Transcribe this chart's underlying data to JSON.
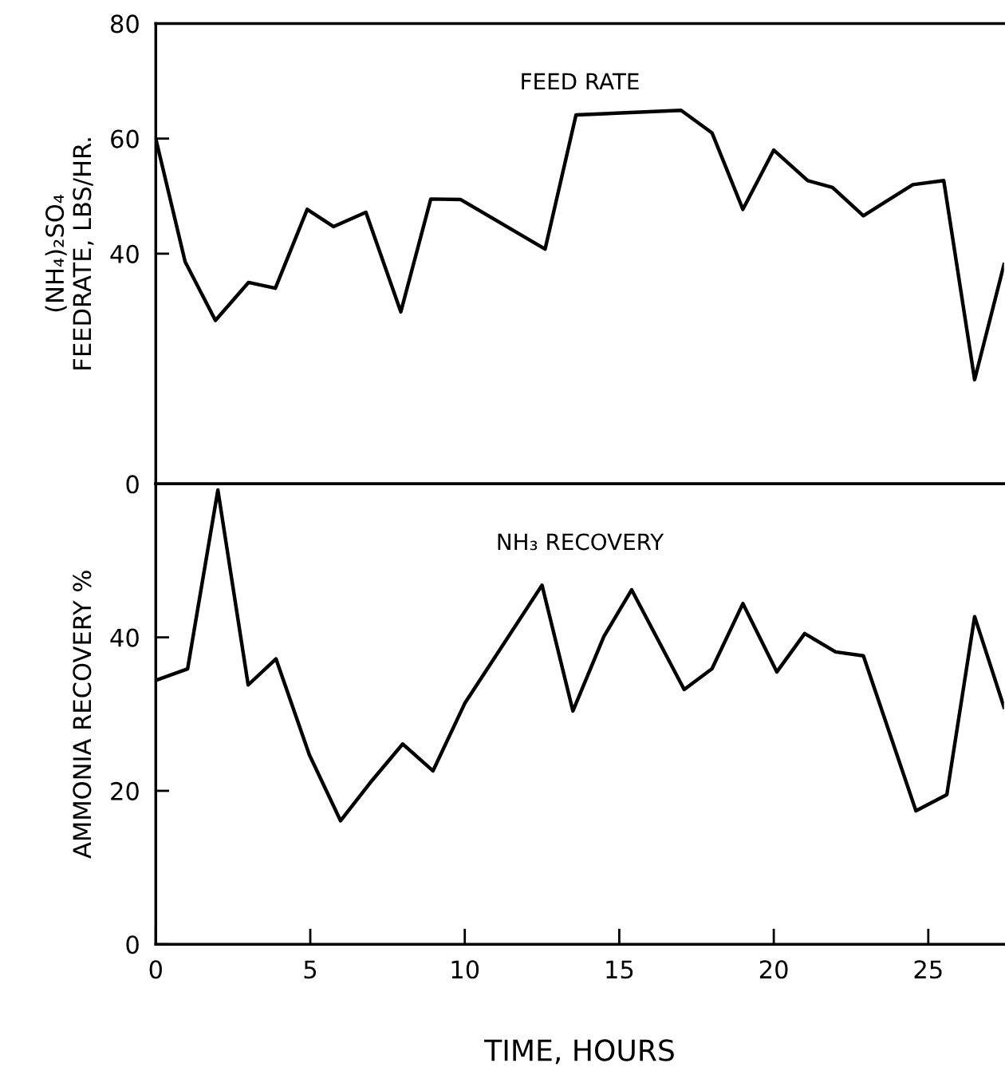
{
  "chart_data": [
    {
      "type": "line",
      "ylabel": "(NH₄)₂SO₄\nFEEDRATE, LBS/HR.",
      "xlim": [
        0,
        27.45
      ],
      "xticks": [
        0,
        5,
        10,
        15,
        20,
        25
      ],
      "ylim": [
        0,
        80
      ],
      "yticks": [
        0,
        40,
        60,
        80
      ],
      "tick_labels": "y",
      "grid": false,
      "legend": false,
      "marker": "none",
      "line_style": "solid",
      "series": [
        {
          "name": "FEED RATE",
          "color": "#000000",
          "x": [
            0,
            0.95,
            1.93,
            3.0,
            3.87,
            4.9,
            5.75,
            6.8,
            7.93,
            8.9,
            9.87,
            12.6,
            13.6,
            17.0,
            18.0,
            19.0,
            20.0,
            21.1,
            21.9,
            22.9,
            24.5,
            25.5,
            26.5,
            27.45
          ],
          "values": [
            60,
            38.6,
            28.4,
            35,
            34,
            47.7,
            44.7,
            47.2,
            29.9,
            49.5,
            49.4,
            40.8,
            64.1,
            64.9,
            61,
            47.7,
            58,
            52.7,
            51.5,
            46.6,
            52,
            52.7,
            18.1,
            38.1
          ]
        }
      ]
    },
    {
      "type": "line",
      "ylabel": "AMMONIA RECOVERY %",
      "xlabel": "TIME, HOURS",
      "xlim": [
        0,
        27.45
      ],
      "xticks": [
        0,
        5,
        10,
        15,
        20,
        25
      ],
      "ylim": [
        0,
        60
      ],
      "yticks": [
        0,
        20,
        40
      ],
      "grid": false,
      "legend": false,
      "marker": "none",
      "line_style": "solid",
      "series": [
        {
          "name": "NH₃ RECOVERY",
          "color": "#000000",
          "x": [
            0,
            1.03,
            2.01,
            2.99,
            3.89,
            4.97,
            5.98,
            7.01,
            7.99,
            8.97,
            10.0,
            12.5,
            13.5,
            14.5,
            15.4,
            17.1,
            18.0,
            19.0,
            20.1,
            21.0,
            22.0,
            22.9,
            24.6,
            25.6,
            26.5,
            27.45
          ],
          "values": [
            34.4,
            35.9,
            59.2,
            33.8,
            37.2,
            24.7,
            16.1,
            21.4,
            26.1,
            22.6,
            31.4,
            46.8,
            30.4,
            40.1,
            46.2,
            33.2,
            35.9,
            44.4,
            35.5,
            40.5,
            38.1,
            37.6,
            17.4,
            19.5,
            42.7,
            30.9
          ]
        }
      ]
    }
  ]
}
